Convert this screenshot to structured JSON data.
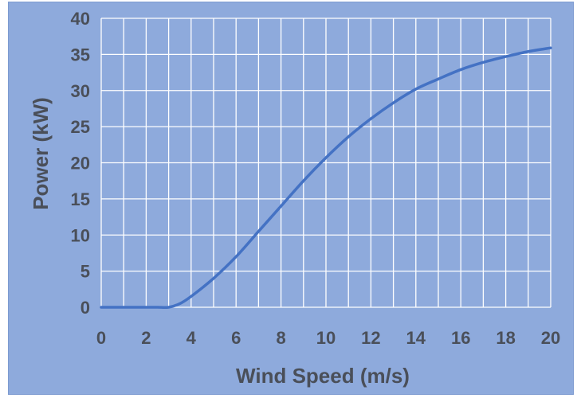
{
  "chart_data": {
    "type": "line",
    "title": "",
    "xlabel": "Wind Speed (m/s)",
    "ylabel": "Power (kW)",
    "xlim": [
      0,
      20
    ],
    "ylim": [
      0,
      40
    ],
    "x_ticks": [
      "0",
      "2",
      "4",
      "6",
      "8",
      "10",
      "12",
      "14",
      "16",
      "18",
      "20"
    ],
    "y_ticks": [
      "0",
      "5",
      "10",
      "15",
      "20",
      "25",
      "30",
      "35",
      "40"
    ],
    "grid": true,
    "legend": "none",
    "colors": {
      "background": "#8eaadc",
      "grid": "#ffffff",
      "line": "#4472c4",
      "text": "#4a4f59"
    },
    "series": [
      {
        "x": [
          0,
          1,
          2,
          2.5,
          3,
          3.5,
          4,
          5,
          6,
          7,
          8,
          9,
          10,
          11,
          12,
          13,
          14,
          15,
          16,
          17,
          18,
          19,
          20
        ],
        "values": [
          0,
          0,
          0,
          0,
          0,
          0.5,
          1.5,
          4,
          7,
          10.5,
          14,
          17.5,
          20.7,
          23.6,
          26.1,
          28.3,
          30.2,
          31.6,
          32.9,
          33.9,
          34.7,
          35.4,
          35.9
        ]
      }
    ]
  }
}
